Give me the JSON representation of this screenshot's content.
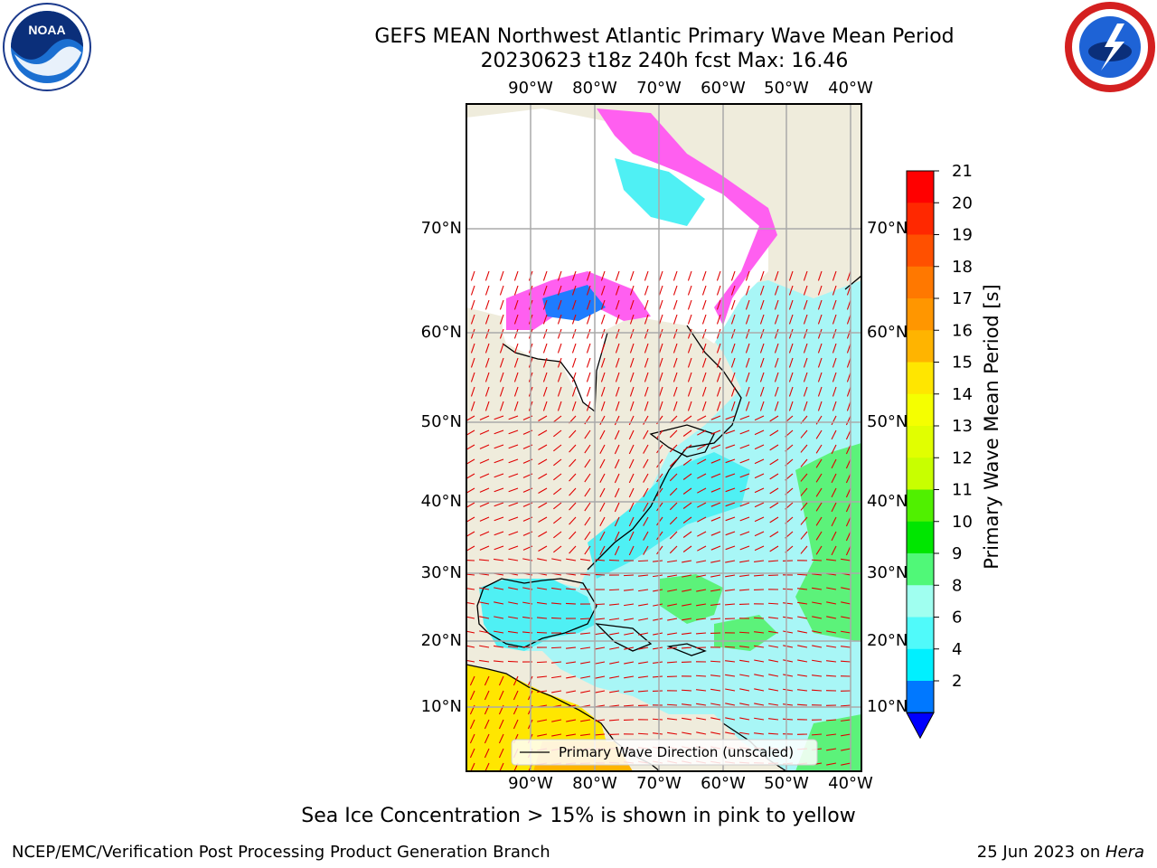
{
  "title": {
    "line1": "GEFS MEAN Northwest Atlantic Primary Wave Mean Period",
    "line2": "20230623 t18z 240h fcst   Max: 16.46"
  },
  "logos": {
    "left": "noara-logo",
    "right": "nws-logo",
    "noaa_text": "NOAA"
  },
  "map": {
    "lon_ticks": [
      "90°W",
      "80°W",
      "70°W",
      "60°W",
      "50°W",
      "40°W"
    ],
    "lat_ticks": [
      "70°N",
      "60°N",
      "50°N",
      "40°N",
      "30°N",
      "20°N",
      "10°N"
    ],
    "legend_label": "Primary Wave Direction (unscaled)"
  },
  "colorbar": {
    "label": "Primary Wave Mean Period [s]",
    "ticks": [
      "21",
      "20",
      "19",
      "18",
      "17",
      "16",
      "15",
      "14",
      "13",
      "12",
      "11",
      "10",
      "9",
      "8",
      "6",
      "4",
      "2"
    ],
    "colors_top_to_bottom": [
      "#ff0000",
      "#ff2800",
      "#ff5000",
      "#ff7800",
      "#ff9600",
      "#ffb400",
      "#ffe600",
      "#f5ff00",
      "#e1ff00",
      "#c8ff00",
      "#50f000",
      "#00e600",
      "#50f878",
      "#a0fff0",
      "#50fafa",
      "#00f0ff",
      "#0078ff"
    ],
    "extend_color": "#0000ff"
  },
  "bottom_note": "Sea Ice Concentration > 15% is shown in pink to yellow",
  "footer": {
    "left": "NCEP/EMC/Verification Post Processing Product Generation Branch",
    "right_prefix": "25 Jun 2023 on ",
    "right_italic": "Hera"
  }
}
